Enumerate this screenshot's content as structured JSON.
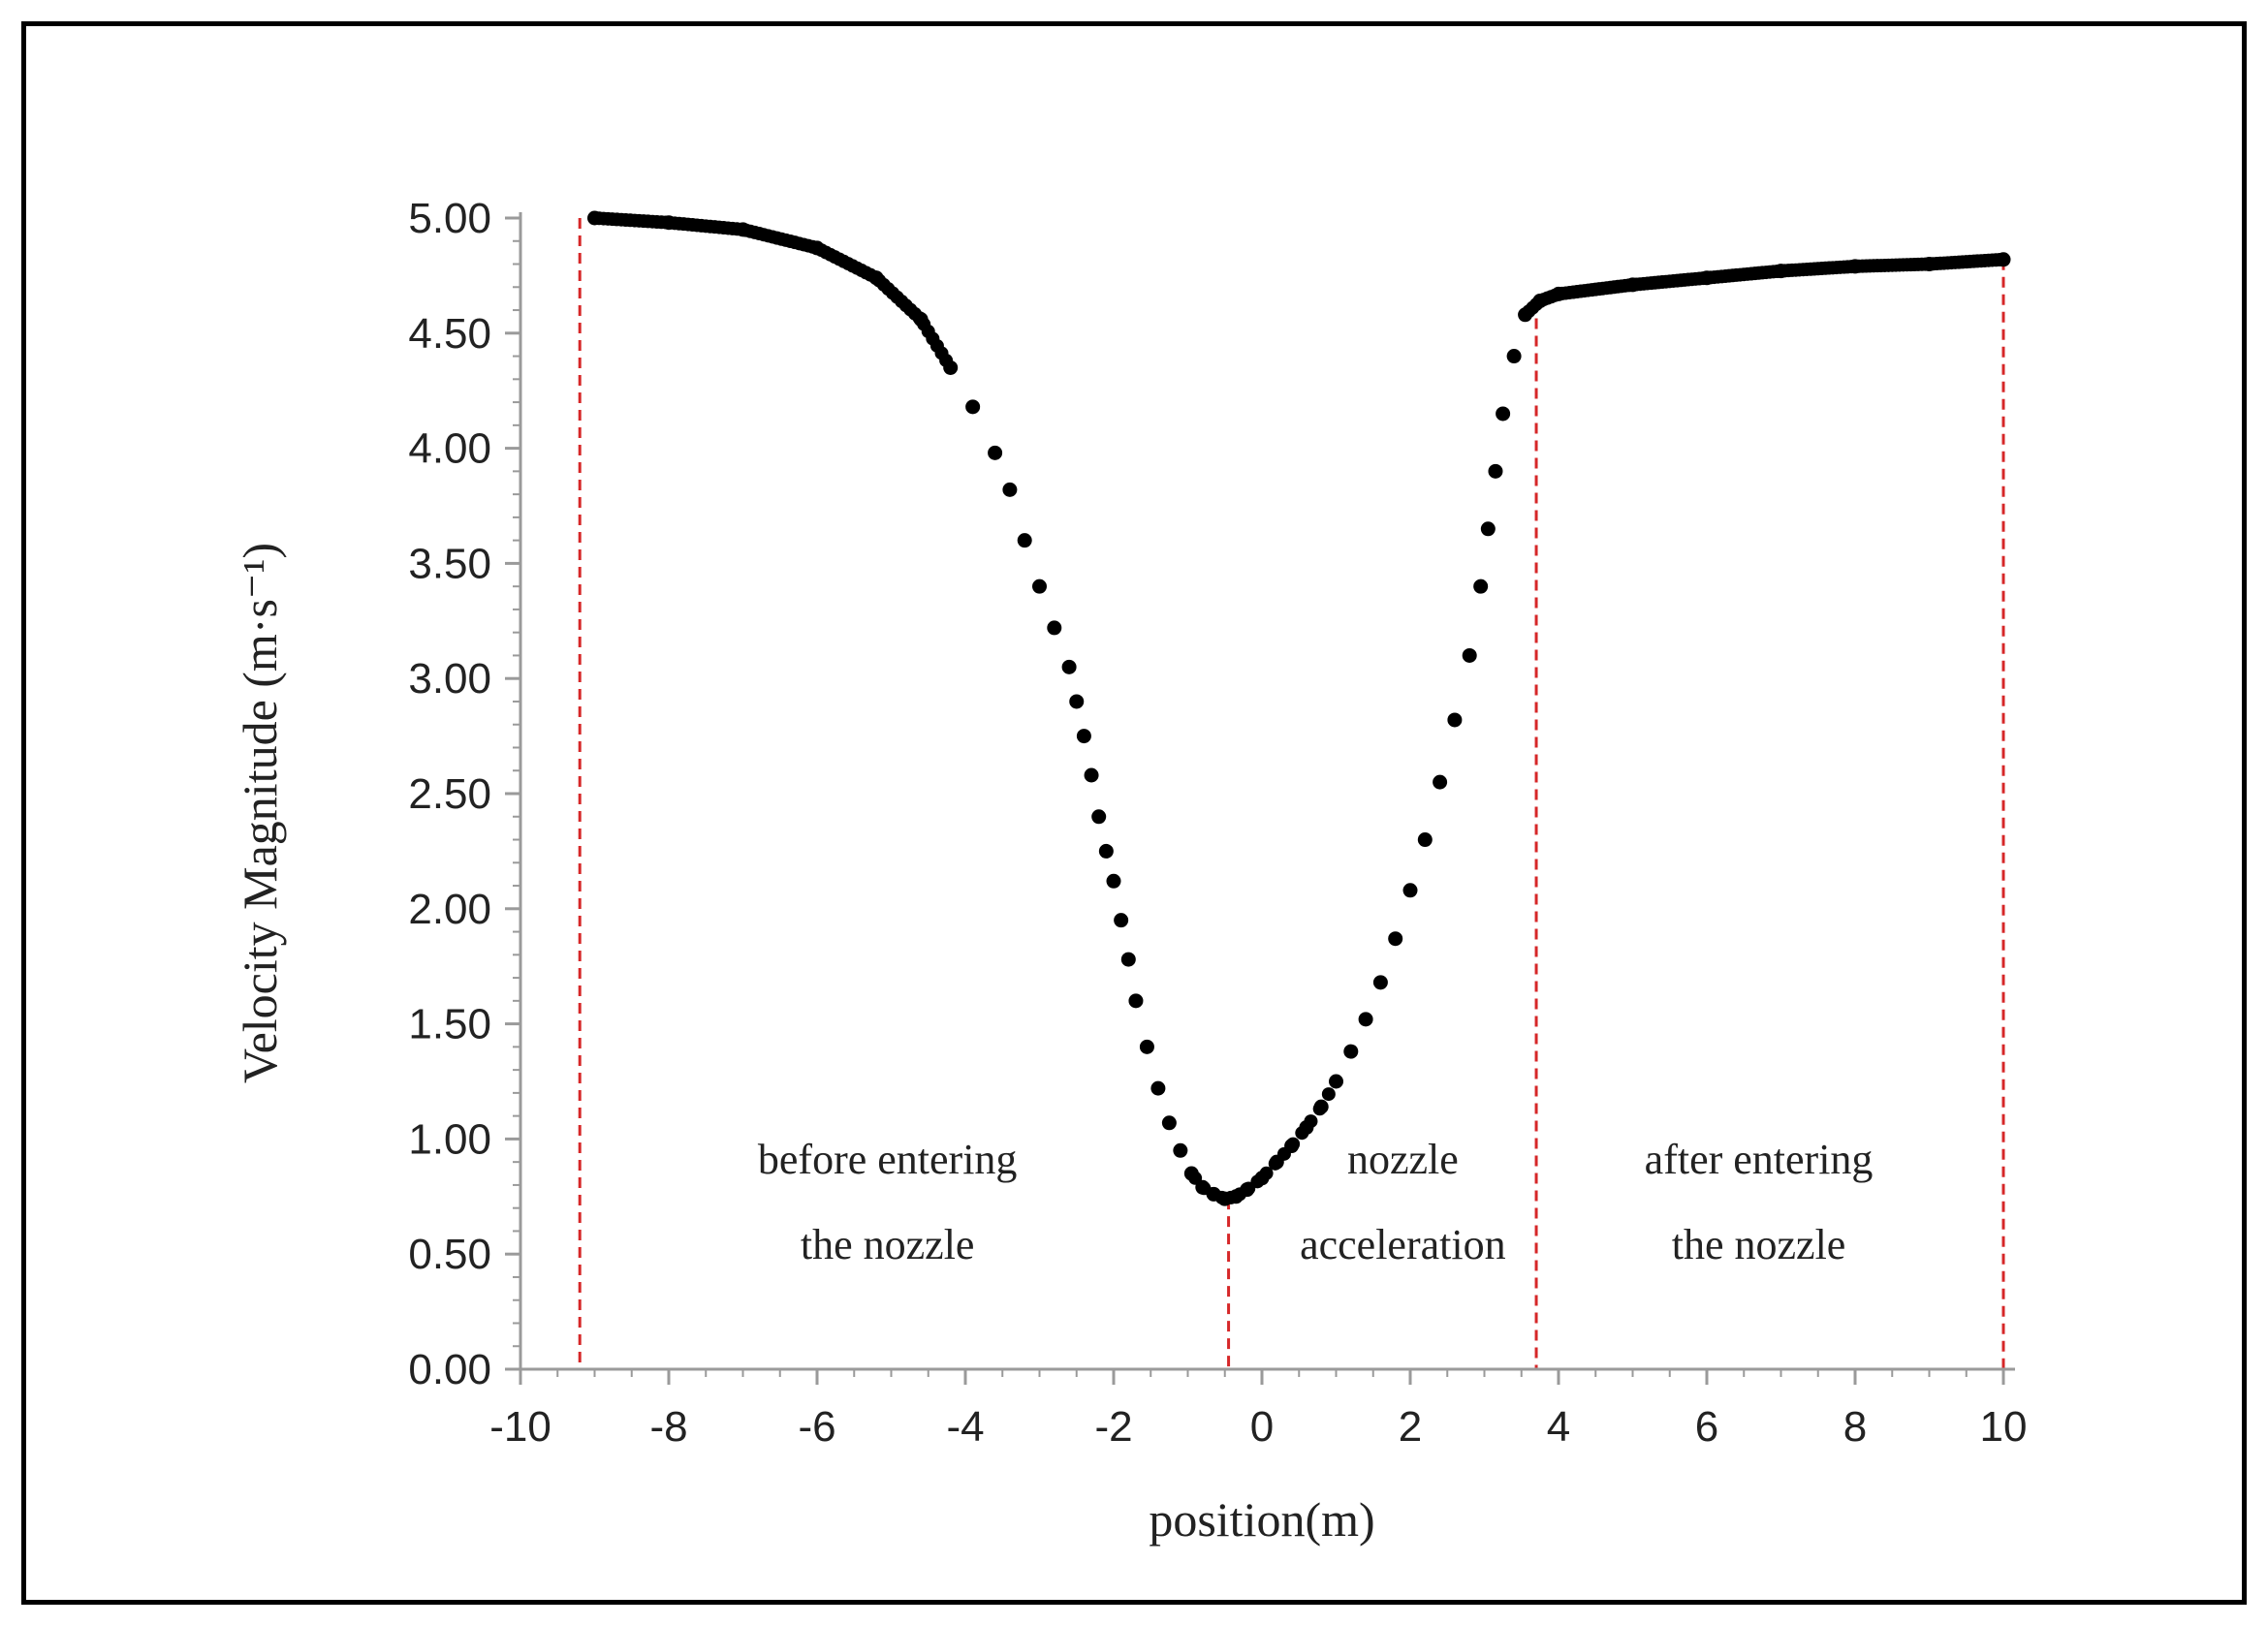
{
  "chart_data": {
    "type": "scatter",
    "title": "",
    "xlabel": "position(m)",
    "ylabel": "Velocity Magnitude (m·s⁻¹)",
    "xlim": [
      -10,
      10
    ],
    "ylim": [
      0,
      5
    ],
    "grid": false,
    "x_ticks": [
      "-10",
      "-8",
      "-6",
      "-4",
      "-2",
      "0",
      "2",
      "4",
      "6",
      "8",
      "10"
    ],
    "y_ticks": [
      "0.00",
      "0.50",
      "1.00",
      "1.50",
      "2.00",
      "2.50",
      "3.00",
      "3.50",
      "4.00",
      "4.50",
      "5.00"
    ],
    "series": [
      {
        "name": "velocity",
        "color": "#000000",
        "points": [
          [
            -9.0,
            5.0
          ],
          [
            -8.0,
            4.98
          ],
          [
            -7.0,
            4.95
          ],
          [
            -6.0,
            4.87
          ],
          [
            -5.2,
            4.74
          ],
          [
            -4.6,
            4.56
          ],
          [
            -4.2,
            4.35
          ],
          [
            -3.9,
            4.18
          ],
          [
            -3.6,
            3.98
          ],
          [
            -3.4,
            3.82
          ],
          [
            -3.2,
            3.6
          ],
          [
            -3.0,
            3.4
          ],
          [
            -2.8,
            3.22
          ],
          [
            -2.6,
            3.05
          ],
          [
            -2.5,
            2.9
          ],
          [
            -2.4,
            2.75
          ],
          [
            -2.3,
            2.58
          ],
          [
            -2.2,
            2.4
          ],
          [
            -2.1,
            2.25
          ],
          [
            -2.0,
            2.12
          ],
          [
            -1.9,
            1.95
          ],
          [
            -1.8,
            1.78
          ],
          [
            -1.7,
            1.6
          ],
          [
            -1.55,
            1.4
          ],
          [
            -1.4,
            1.22
          ],
          [
            -1.25,
            1.07
          ],
          [
            -1.1,
            0.95
          ],
          [
            -0.95,
            0.85
          ],
          [
            -0.8,
            0.79
          ],
          [
            -0.65,
            0.76
          ],
          [
            -0.5,
            0.74
          ],
          [
            -0.35,
            0.75
          ],
          [
            -0.2,
            0.78
          ],
          [
            0.0,
            0.83
          ],
          [
            0.2,
            0.9
          ],
          [
            0.4,
            0.97
          ],
          [
            0.6,
            1.05
          ],
          [
            0.8,
            1.14
          ],
          [
            1.0,
            1.25
          ],
          [
            1.2,
            1.38
          ],
          [
            1.4,
            1.52
          ],
          [
            1.6,
            1.68
          ],
          [
            1.8,
            1.87
          ],
          [
            2.0,
            2.08
          ],
          [
            2.2,
            2.3
          ],
          [
            2.4,
            2.55
          ],
          [
            2.6,
            2.82
          ],
          [
            2.8,
            3.1
          ],
          [
            2.95,
            3.4
          ],
          [
            3.05,
            3.65
          ],
          [
            3.15,
            3.9
          ],
          [
            3.25,
            4.15
          ],
          [
            3.4,
            4.4
          ],
          [
            3.55,
            4.58
          ],
          [
            3.75,
            4.64
          ],
          [
            4.0,
            4.67
          ],
          [
            5.0,
            4.71
          ],
          [
            6.0,
            4.74
          ],
          [
            7.0,
            4.77
          ],
          [
            8.0,
            4.79
          ],
          [
            9.0,
            4.8
          ],
          [
            10.0,
            4.82
          ]
        ]
      }
    ],
    "reference_lines": [
      {
        "x": -9.2,
        "color": "#d62728",
        "style": "dashed"
      },
      {
        "x": -0.45,
        "color": "#d62728",
        "style": "dashed"
      },
      {
        "x": 3.7,
        "color": "#d62728",
        "style": "dashed"
      },
      {
        "x": 10.0,
        "color": "#d62728",
        "style": "dashed"
      }
    ],
    "annotations": [
      {
        "lines": [
          "before entering",
          "the nozzle"
        ],
        "x": -5.05,
        "y": 0.85
      },
      {
        "lines": [
          "nozzle",
          "acceleration"
        ],
        "x": 1.9,
        "y": 0.85
      },
      {
        "lines": [
          "after entering",
          "the nozzle"
        ],
        "x": 6.7,
        "y": 0.85
      }
    ]
  }
}
